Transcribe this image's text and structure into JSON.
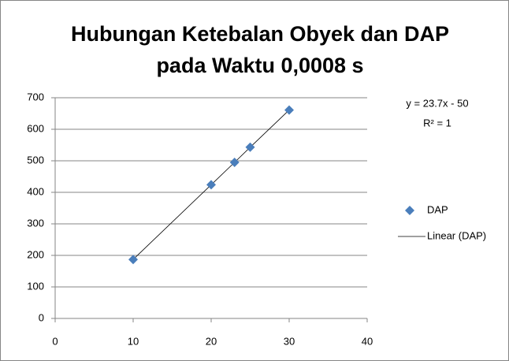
{
  "chart_data": {
    "type": "scatter",
    "title": [
      "Hubungan Ketebalan Obyek dan DAP",
      "pada Waktu 0,0008 s"
    ],
    "series": [
      {
        "name": "DAP",
        "color": "#4a7ebb",
        "x": [
          10,
          20,
          23,
          25,
          30
        ],
        "values": [
          187,
          424,
          495,
          543,
          661
        ]
      }
    ],
    "trendline": {
      "name": "Linear (DAP)",
      "color": "#000000",
      "equation": "y = 23.7x - 50",
      "r_squared": "R² = 1"
    },
    "xlim": [
      0,
      40
    ],
    "xticks": [
      0,
      10,
      20,
      30,
      40
    ],
    "ylim": [
      0,
      700
    ],
    "yticks": [
      0,
      100,
      200,
      300,
      400,
      500,
      600,
      700
    ],
    "grid": true,
    "legend": "right"
  }
}
